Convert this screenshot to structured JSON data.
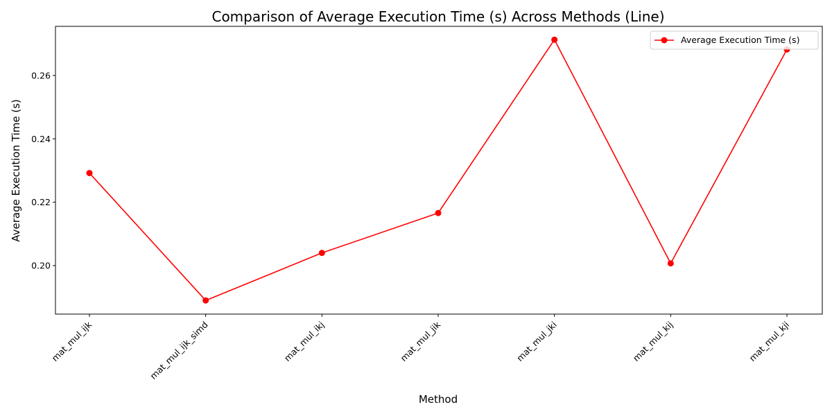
{
  "chart_data": {
    "type": "line",
    "title": "Comparison of Average Execution Time (s) Across Methods (Line)",
    "xlabel": "Method",
    "ylabel": "Average Execution Time (s)",
    "categories": [
      "mat_mul_ijk",
      "mat_mul_ijk_simd",
      "mat_mul_ikj",
      "mat_mul_jik",
      "mat_mul_jki",
      "mat_mul_kij",
      "mat_mul_kji"
    ],
    "series": [
      {
        "name": "Average Execution Time (s)",
        "color": "#ff0000",
        "values": [
          0.2292,
          0.189,
          0.204,
          0.2166,
          0.2713,
          0.2007,
          0.2682
        ]
      }
    ],
    "ylim": [
      0.1847,
      0.2755
    ],
    "yticks": [
      0.2,
      0.22,
      0.24,
      0.26
    ],
    "ytick_labels": [
      "0.20",
      "0.22",
      "0.24",
      "0.26"
    ],
    "grid": false,
    "legend_position": "top-right",
    "xtick_rotation": 45
  }
}
